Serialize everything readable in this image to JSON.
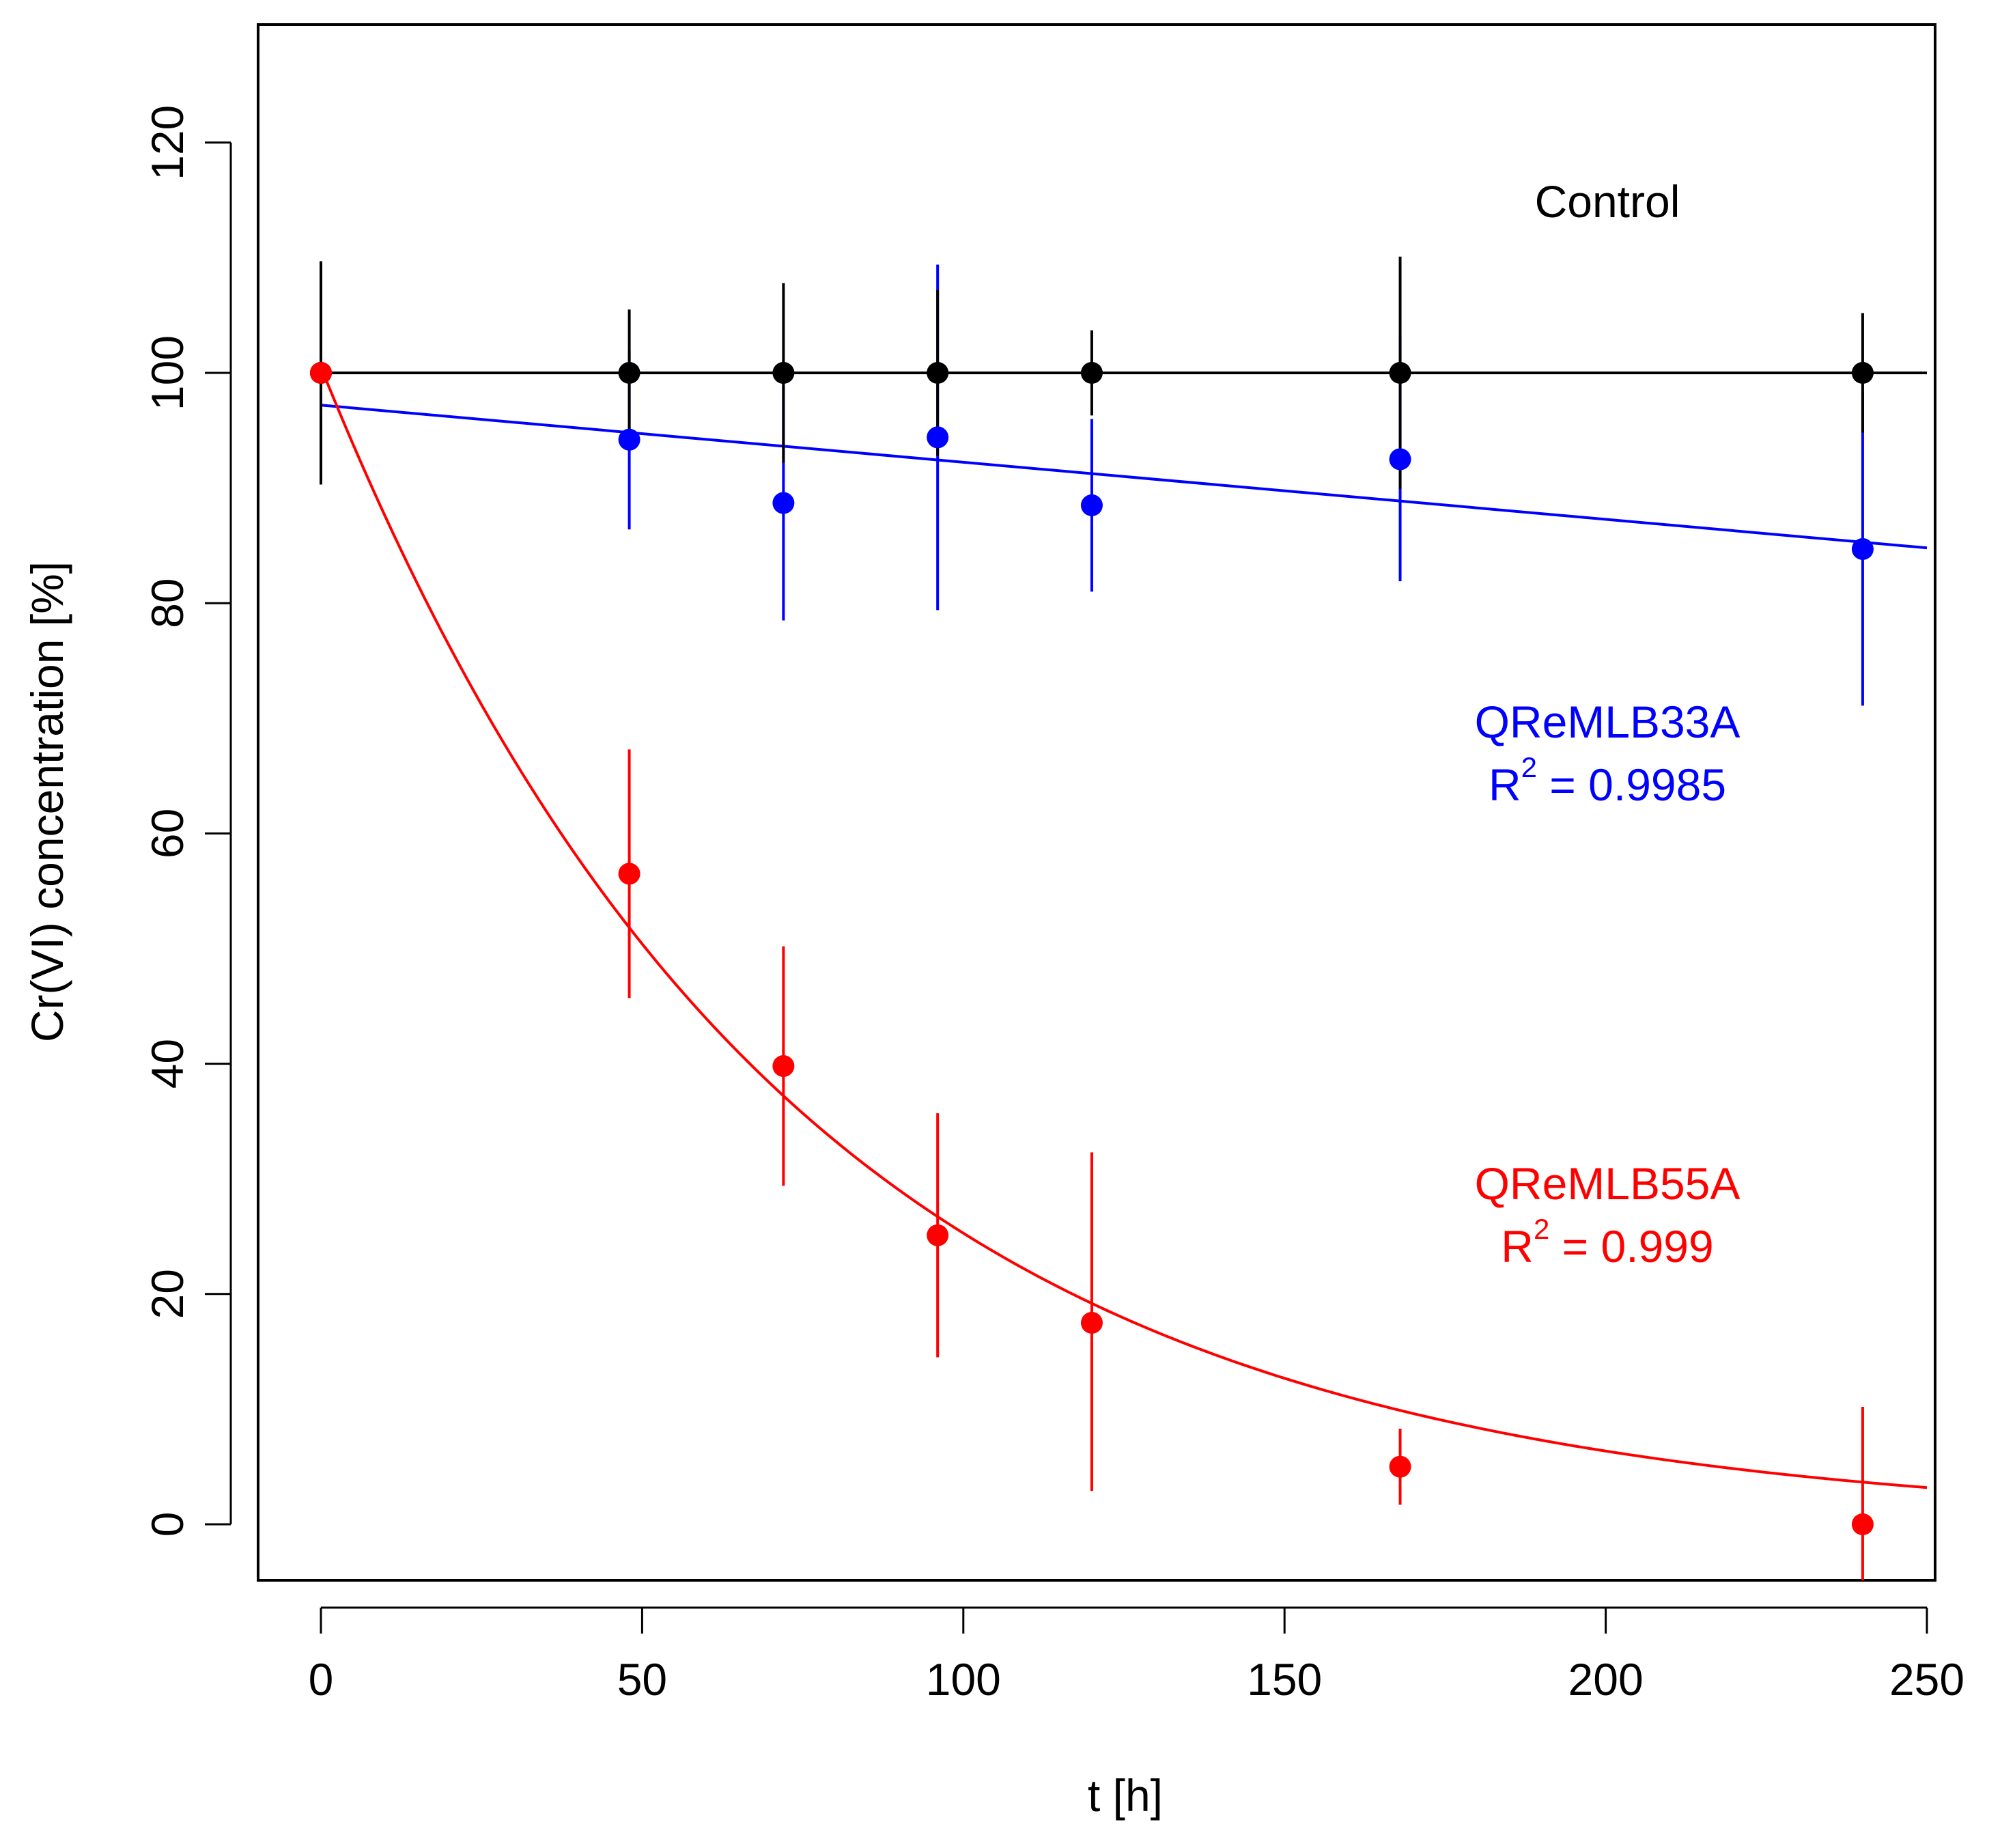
{
  "chart_data": {
    "type": "scatter",
    "title": "",
    "xlabel": "t [h]",
    "ylabel": "Cr(VI) concentration [%]",
    "xlim": [
      -10,
      260
    ],
    "ylim": [
      -5,
      130
    ],
    "xticks": [
      0,
      50,
      100,
      150,
      200,
      250
    ],
    "yticks": [
      0,
      20,
      40,
      60,
      80,
      100,
      120
    ],
    "grid": false,
    "series": [
      {
        "name": "Control",
        "color": "#000000",
        "x": [
          0,
          48,
          72,
          96,
          120,
          168,
          240
        ],
        "y": [
          100,
          100,
          100,
          100,
          100,
          100,
          100
        ],
        "err_lo": [
          90.3,
          94.5,
          92.2,
          92.8,
          96.3,
          89.9,
          94.8
        ],
        "err_hi": [
          109.7,
          105.5,
          107.8,
          107.2,
          103.7,
          110.1,
          105.2
        ],
        "fit": {
          "kind": "constant",
          "value": 100,
          "x_range": [
            0,
            250
          ]
        }
      },
      {
        "name": "QReMLB33A",
        "color": "#0000ff",
        "x": [
          0,
          48,
          72,
          96,
          120,
          168,
          240
        ],
        "y": [
          100,
          94.2,
          88.7,
          94.4,
          88.5,
          92.5,
          84.7
        ],
        "err_lo": [
          90.3,
          86.4,
          78.5,
          79.4,
          81.0,
          81.9,
          71.1
        ],
        "err_hi": [
          109.7,
          102.0,
          98.9,
          109.4,
          96.0,
          103.1,
          98.3
        ],
        "fit": {
          "kind": "linear",
          "intercept": 97.2,
          "slope": -0.0496,
          "x_range": [
            0,
            250
          ]
        },
        "r2_label": "0.9985"
      },
      {
        "name": "QReMLB55A",
        "color": "#ff0000",
        "x": [
          0,
          48,
          72,
          96,
          120,
          168,
          240
        ],
        "y": [
          100,
          56.5,
          39.8,
          25.1,
          17.5,
          5.0,
          0.0
        ],
        "err_lo": [
          90.3,
          45.7,
          29.4,
          14.5,
          2.9,
          1.7,
          -9.8
        ],
        "err_hi": [
          109.7,
          67.3,
          50.2,
          35.7,
          32.3,
          8.3,
          10.2
        ],
        "fit": {
          "kind": "exponential",
          "a": 100.5,
          "k": 0.0138,
          "x_range": [
            0,
            250
          ]
        },
        "r2_label": "0.999"
      }
    ],
    "annotations": {
      "control": "Control",
      "blue_name": "QReMLB33A",
      "blue_r2_prefix": "R",
      "blue_r2_sup": "2",
      "blue_r2_value": " = 0.9985",
      "red_name": "QReMLB55A",
      "red_r2_prefix": "R",
      "red_r2_sup": "2",
      "red_r2_value": " = 0.999"
    }
  }
}
